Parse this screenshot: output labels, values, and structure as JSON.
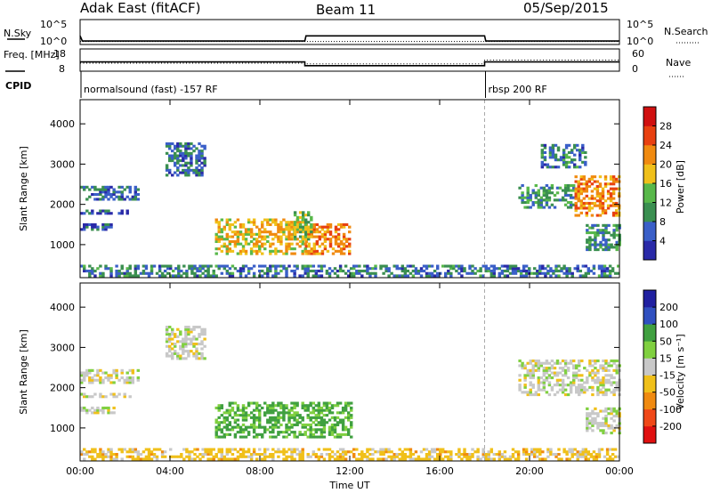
{
  "header": {
    "title": "Adak East (fitACF)",
    "beam": "Beam 11",
    "date": "05/Sep/2015"
  },
  "colors": {
    "power": [
      "#2a2aa8",
      "#3a5fc8",
      "#3a8f50",
      "#58b84a",
      "#f0c01a",
      "#f08a10",
      "#e84010",
      "#d01010"
    ],
    "velocity": [
      "#e01010",
      "#f04818",
      "#f08a10",
      "#f0c01a",
      "#c8c8c8",
      "#80d040",
      "#40a040",
      "#3050c0",
      "#2020a0"
    ],
    "sound_line": "#aaaaaa"
  },
  "chart_data": [
    {
      "type": "line",
      "title": "Adak East (fitACF)",
      "x_range": [
        "00:00",
        "24:00"
      ],
      "series": [
        {
          "name": "N.Sky",
          "points": [
            [
              0.0,
              1.6
            ],
            [
              0.1,
              0.4
            ],
            [
              6.0,
              0.4
            ],
            [
              10.0,
              0.4
            ],
            [
              10.05,
              1.6
            ],
            [
              18.0,
              1.6
            ],
            [
              18.05,
              0.4
            ],
            [
              24.0,
              0.4
            ]
          ]
        },
        {
          "name": "N.Search",
          "points": [
            [
              0.0,
              0.3
            ],
            [
              24.0,
              0.3
            ]
          ]
        }
      ],
      "left_axis": {
        "label": "N.Sky",
        "ticks": [
          "10^5",
          "10^0"
        ]
      },
      "right_axis": {
        "label": "N.Search",
        "ticks": [
          "10^5",
          "10^0"
        ]
      }
    },
    {
      "type": "line",
      "series": [
        {
          "name": "Freq.",
          "points": [
            [
              0.0,
              12.0
            ],
            [
              10.0,
              12.0
            ],
            [
              10.0,
              10.0
            ],
            [
              18.0,
              10.0
            ],
            [
              18.0,
              12.0
            ],
            [
              24.0,
              12.0
            ]
          ]
        },
        {
          "name": "Nave",
          "points": [
            [
              0.0,
              20.0
            ],
            [
              10.0,
              20.0
            ],
            [
              10.0,
              18.0
            ],
            [
              18.0,
              18.0
            ],
            [
              18.0,
              30.0
            ],
            [
              24.0,
              30.0
            ]
          ]
        }
      ],
      "left_axis": {
        "label": "Freq. [MHz]",
        "ticks": [
          "18",
          "8"
        ]
      },
      "right_axis": {
        "label": "Nave",
        "ticks": [
          "60",
          "0"
        ]
      },
      "cpid_label": "CPID",
      "cpid_segments": [
        {
          "start": 0.0,
          "label": "normalsound (fast) -157 RF"
        },
        {
          "start": 18.0,
          "label": "rbsp 200 RF"
        }
      ]
    },
    {
      "type": "heatmap",
      "ylabel": "Slant Range [km]",
      "xlabel": "Time UT",
      "x_ticks": [
        "00:00",
        "04:00",
        "08:00",
        "12:00",
        "16:00",
        "20:00",
        "00:00"
      ],
      "y_ticks": [
        "1000",
        "2000",
        "3000",
        "4000"
      ],
      "ylim": [
        180,
        4600
      ],
      "grid": "off",
      "sound_change_time": 18.0,
      "colorbar": {
        "label": "Power [dB]",
        "ticks": [
          "4",
          "8",
          "12",
          "16",
          "20",
          "24",
          "28"
        ],
        "range": [
          0,
          32
        ]
      },
      "regions": [
        {
          "t": [
            0.0,
            2.6
          ],
          "r": [
            2100,
            2450
          ],
          "p": 7
        },
        {
          "t": [
            0.0,
            2.2
          ],
          "r": [
            1750,
            1850
          ],
          "p": 5
        },
        {
          "t": [
            0.0,
            1.5
          ],
          "r": [
            1350,
            1500
          ],
          "p": 6
        },
        {
          "t": [
            3.8,
            5.5
          ],
          "r": [
            2700,
            3500
          ],
          "p": 7
        },
        {
          "t": [
            6.0,
            10.0
          ],
          "r": [
            750,
            1600
          ],
          "p": 18
        },
        {
          "t": [
            10.0,
            12.0
          ],
          "r": [
            750,
            1500
          ],
          "p": 22
        },
        {
          "t": [
            9.5,
            10.3
          ],
          "r": [
            1050,
            1800
          ],
          "p": 14
        },
        {
          "t": [
            19.5,
            22.0
          ],
          "r": [
            1900,
            2500
          ],
          "p": 10
        },
        {
          "t": [
            22.0,
            24.0
          ],
          "r": [
            1700,
            2700
          ],
          "p": 22
        },
        {
          "t": [
            22.5,
            24.0
          ],
          "r": [
            850,
            1500
          ],
          "p": 9
        },
        {
          "t": [
            20.5,
            22.5
          ],
          "r": [
            2900,
            3500
          ],
          "p": 8
        },
        {
          "t": [
            0.0,
            24.0
          ],
          "r": [
            200,
            450
          ],
          "p": 8
        }
      ]
    },
    {
      "type": "heatmap",
      "ylabel": "Slant Range [km]",
      "xlabel": "Time UT",
      "x_ticks": [
        "00:00",
        "04:00",
        "08:00",
        "12:00",
        "16:00",
        "20:00",
        "00:00"
      ],
      "y_ticks": [
        "1000",
        "2000",
        "3000",
        "4000"
      ],
      "ylim": [
        180,
        4600
      ],
      "grid": "off",
      "sound_change_time": 18.0,
      "colorbar": {
        "label": "Velocity [m s⁻¹]",
        "ticks": [
          "-200",
          "-100",
          "-50",
          "-15",
          "15",
          "50",
          "100",
          "200"
        ],
        "range": [
          -250,
          250
        ]
      },
      "regions": [
        {
          "t": [
            0.0,
            2.6
          ],
          "r": [
            2100,
            2450
          ],
          "v": 0
        },
        {
          "t": [
            0.0,
            2.2
          ],
          "r": [
            1750,
            1850
          ],
          "v": 0
        },
        {
          "t": [
            0.0,
            1.5
          ],
          "r": [
            1350,
            1500
          ],
          "v": 0
        },
        {
          "t": [
            3.8,
            5.5
          ],
          "r": [
            2700,
            3500
          ],
          "v": 0
        },
        {
          "t": [
            6.0,
            12.0
          ],
          "r": [
            750,
            1600
          ],
          "v": 60
        },
        {
          "t": [
            19.5,
            24.0
          ],
          "r": [
            1800,
            2700
          ],
          "v": 0
        },
        {
          "t": [
            22.5,
            24.0
          ],
          "r": [
            850,
            1500
          ],
          "v": 0
        },
        {
          "t": [
            0.0,
            24.0
          ],
          "r": [
            200,
            450
          ],
          "v": -30
        }
      ]
    }
  ]
}
